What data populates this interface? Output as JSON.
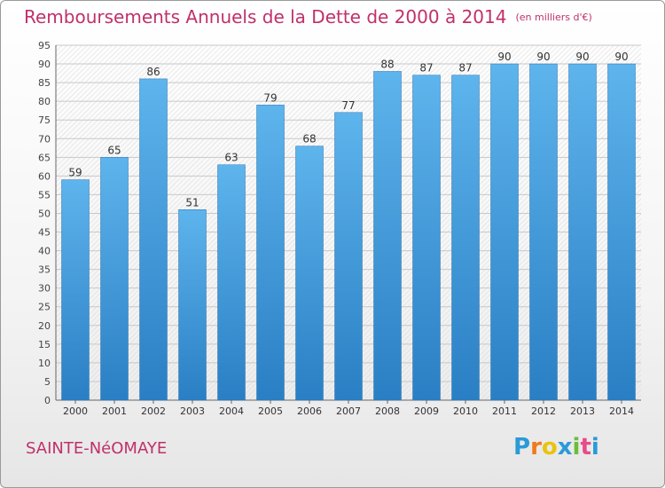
{
  "chart_data": {
    "type": "bar",
    "title": "Remboursements Annuels de la Dette de 2000 à 2014",
    "unit": "(en milliers d'€)",
    "categories": [
      "2000",
      "2001",
      "2002",
      "2003",
      "2004",
      "2005",
      "2006",
      "2007",
      "2008",
      "2009",
      "2010",
      "2011",
      "2012",
      "2013",
      "2014"
    ],
    "values": [
      59,
      65,
      86,
      51,
      63,
      79,
      68,
      77,
      88,
      87,
      87,
      90,
      90,
      90,
      90
    ],
    "yticks": [
      "0",
      "5",
      "10",
      "15",
      "20",
      "25",
      "30",
      "35",
      "40",
      "45",
      "50",
      "55",
      "60",
      "65",
      "70",
      "75",
      "80",
      "85",
      "90",
      "95"
    ],
    "ylim": [
      0,
      95
    ],
    "xlabel": "",
    "ylabel": "",
    "grid": true,
    "bar_color_top": "#5eb4ec",
    "bar_color_bottom": "#2a7fc4"
  },
  "commune": "SAINTE-NéOMAYE",
  "brand": {
    "letters": [
      "P",
      "r",
      "o",
      "x",
      "i",
      "t",
      "i"
    ],
    "colors": [
      "#2a9ad8",
      "#f07a1a",
      "#e8c410",
      "#2a9ad8",
      "#6cbd3a",
      "#e84a8a",
      "#2a9ad8"
    ]
  }
}
